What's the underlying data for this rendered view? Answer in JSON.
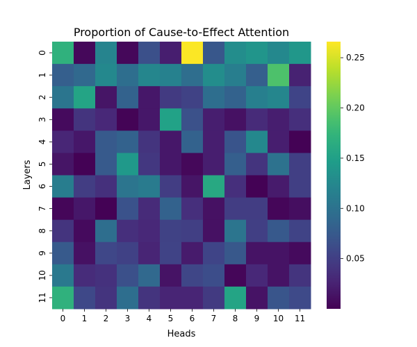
{
  "chart_data": {
    "type": "heatmap",
    "title": "Proportion of Cause-to-Effect Attention",
    "xlabel": "Heads",
    "ylabel": "Layers",
    "x_categories": [
      "0",
      "1",
      "2",
      "3",
      "4",
      "5",
      "6",
      "7",
      "8",
      "9",
      "10",
      "11"
    ],
    "y_categories": [
      "0",
      "1",
      "2",
      "3",
      "4",
      "5",
      "6",
      "7",
      "8",
      "9",
      "10",
      "11"
    ],
    "colormap": "viridis",
    "vmin": 0.0,
    "vmax": 0.266,
    "colorbar_ticks": [
      0.05,
      0.1,
      0.15,
      0.2,
      0.25
    ],
    "colorbar_tick_labels": [
      "0.05",
      "0.10",
      "0.15",
      "0.20",
      "0.25"
    ],
    "values": [
      [
        0.17,
        0.005,
        0.12,
        0.005,
        0.066,
        0.022,
        0.265,
        0.072,
        0.13,
        0.138,
        0.125,
        0.14
      ],
      [
        0.08,
        0.09,
        0.125,
        0.096,
        0.122,
        0.117,
        0.095,
        0.13,
        0.114,
        0.08,
        0.19,
        0.025
      ],
      [
        0.104,
        0.155,
        0.015,
        0.083,
        0.017,
        0.046,
        0.053,
        0.096,
        0.083,
        0.115,
        0.122,
        0.055
      ],
      [
        0.007,
        0.04,
        0.03,
        0.002,
        0.017,
        0.152,
        0.067,
        0.022,
        0.012,
        0.032,
        0.022,
        0.036
      ],
      [
        0.028,
        0.017,
        0.075,
        0.083,
        0.04,
        0.017,
        0.083,
        0.022,
        0.07,
        0.125,
        0.022,
        0.001
      ],
      [
        0.015,
        0.001,
        0.075,
        0.142,
        0.043,
        0.017,
        0.005,
        0.022,
        0.08,
        0.04,
        0.1,
        0.05
      ],
      [
        0.112,
        0.048,
        0.037,
        0.103,
        0.11,
        0.048,
        0.015,
        0.16,
        0.036,
        0.001,
        0.02,
        0.05
      ],
      [
        0.004,
        0.017,
        0.001,
        0.068,
        0.032,
        0.083,
        0.036,
        0.012,
        0.048,
        0.048,
        0.004,
        0.01
      ],
      [
        0.04,
        0.007,
        0.096,
        0.036,
        0.03,
        0.053,
        0.05,
        0.012,
        0.103,
        0.05,
        0.074,
        0.054
      ],
      [
        0.075,
        0.012,
        0.057,
        0.052,
        0.027,
        0.054,
        0.02,
        0.055,
        0.073,
        0.014,
        0.014,
        0.007
      ],
      [
        0.108,
        0.033,
        0.038,
        0.066,
        0.09,
        0.014,
        0.056,
        0.063,
        0.004,
        0.03,
        0.014,
        0.04
      ],
      [
        0.17,
        0.058,
        0.04,
        0.096,
        0.04,
        0.027,
        0.027,
        0.046,
        0.155,
        0.014,
        0.071,
        0.06
      ]
    ]
  }
}
